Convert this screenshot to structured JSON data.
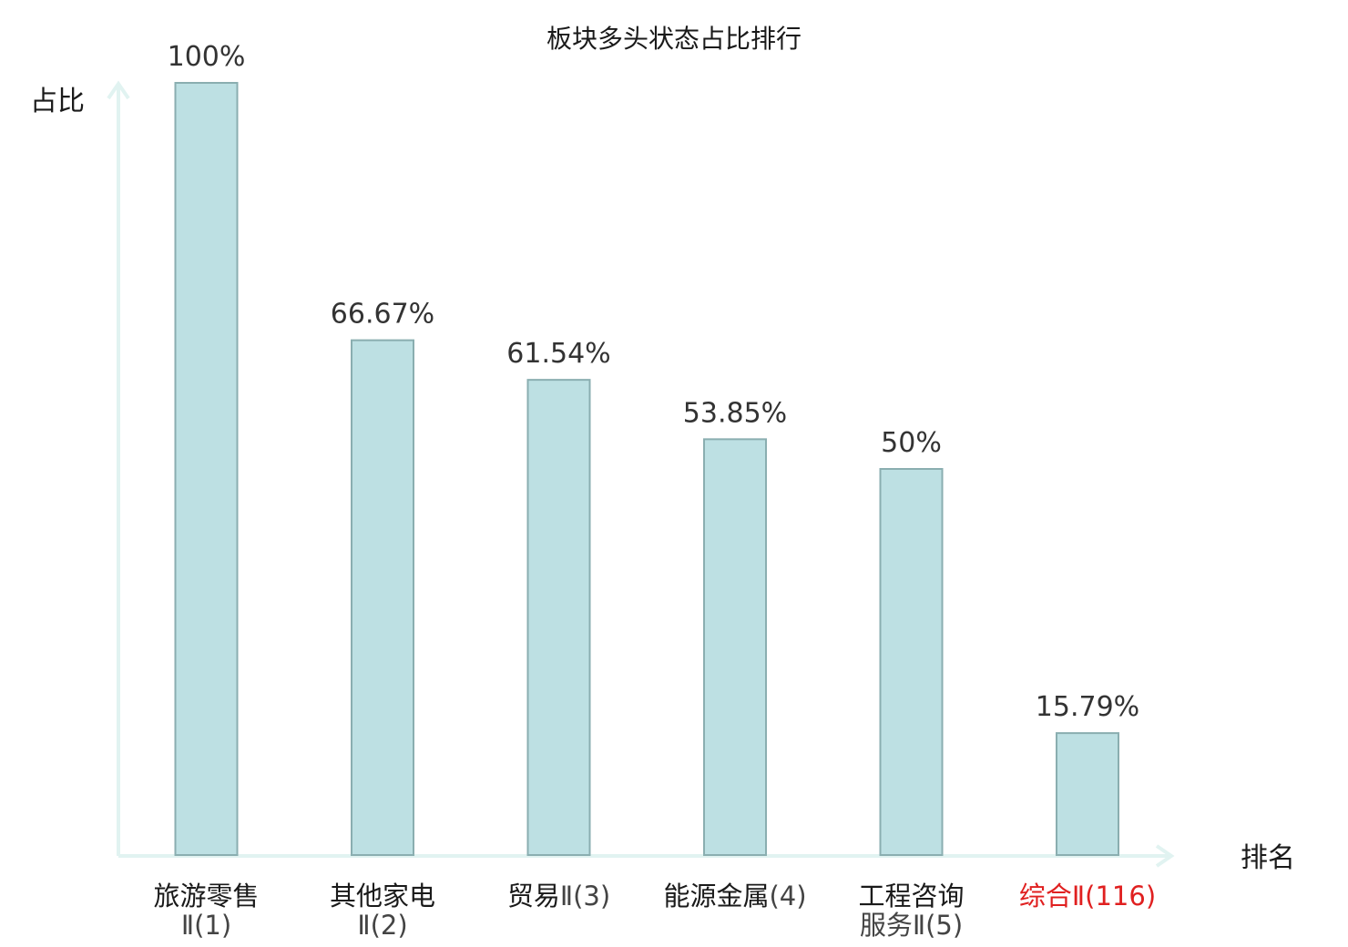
{
  "chart_data": {
    "type": "bar",
    "title": "板块多头状态占比排行",
    "ylabel": "占比",
    "xlabel": "排名",
    "ylim": [
      0,
      100
    ],
    "grid": false,
    "categories": [
      {
        "name": "旅游零售",
        "rank": "Ⅱ(1)",
        "value": 100,
        "label": "100%",
        "highlight": false
      },
      {
        "name": "其他家电",
        "rank": "Ⅱ(2)",
        "value": 66.67,
        "label": "66.67%",
        "highlight": false
      },
      {
        "name": "贸易",
        "rank": "Ⅱ(3)",
        "value": 61.54,
        "label": "61.54%",
        "highlight": false,
        "inline": true
      },
      {
        "name": "能源金属",
        "rank": "(4)",
        "value": 53.85,
        "label": "53.85%",
        "highlight": false,
        "inline": true
      },
      {
        "name": "工程咨询",
        "rank": "服务Ⅱ(5)",
        "value": 50,
        "label": "50%",
        "highlight": false
      },
      {
        "name": "综合",
        "rank": "Ⅱ(116)",
        "value": 15.79,
        "label": "15.79%",
        "highlight": true,
        "inline": true
      }
    ],
    "colors": {
      "bar_fill": "#bde0e3",
      "bar_stroke": "#8aaeb0",
      "axis": "#e1f3f1",
      "text": "#1a1a1a",
      "value_text": "#333333",
      "rank_text": "#444444",
      "highlight": "#e02020"
    }
  }
}
